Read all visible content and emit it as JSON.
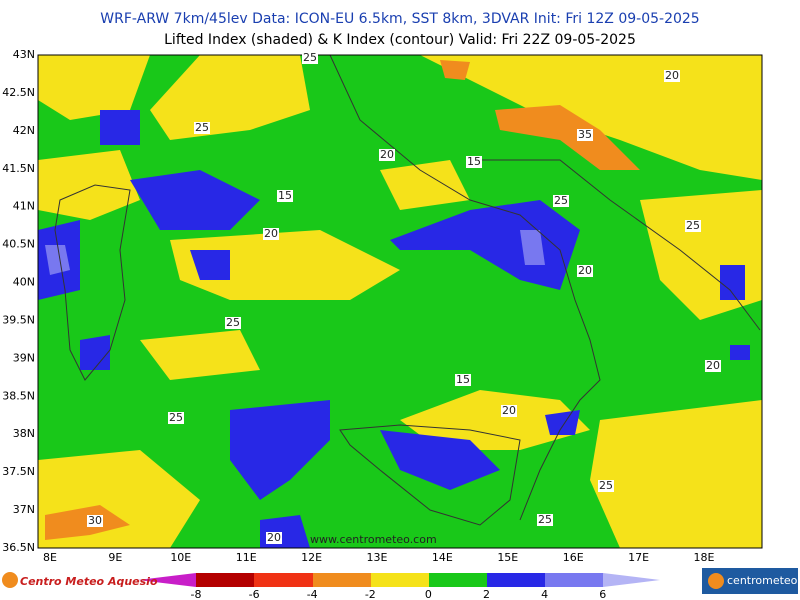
{
  "header": {
    "line1": "WRF-ARW 7km/45lev   Data: ICON-EU 6.5km, SST 8km, 3DVAR   Init: Fri 12Z 09-05-2025",
    "line2": "Lifted Index (shaded) & K Index (contour)   Valid: Fri 22Z 09-05-2025"
  },
  "map": {
    "lat_labels": [
      "43N",
      "42.5N",
      "42N",
      "41.5N",
      "41N",
      "40.5N",
      "40N",
      "39.5N",
      "39N",
      "38.5N",
      "38N",
      "37.5N",
      "37N",
      "36.5N"
    ],
    "lon_labels": [
      "8E",
      "9E",
      "10E",
      "11E",
      "12E",
      "13E",
      "14E",
      "15E",
      "16E",
      "17E",
      "18E"
    ],
    "contour_labels": [
      "25",
      "20",
      "25",
      "35",
      "20",
      "15",
      "25",
      "15",
      "20",
      "25",
      "20",
      "25",
      "20",
      "15",
      "20",
      "25",
      "25",
      "25",
      "30",
      "20"
    ],
    "watermark": "www.centrometeo.com"
  },
  "legend": {
    "ticks": [
      -8,
      -6,
      -4,
      -2,
      0,
      2,
      4,
      6
    ]
  },
  "logos": {
    "left": "Centro Meteo Aquesio",
    "right": "centrometeo"
  }
}
